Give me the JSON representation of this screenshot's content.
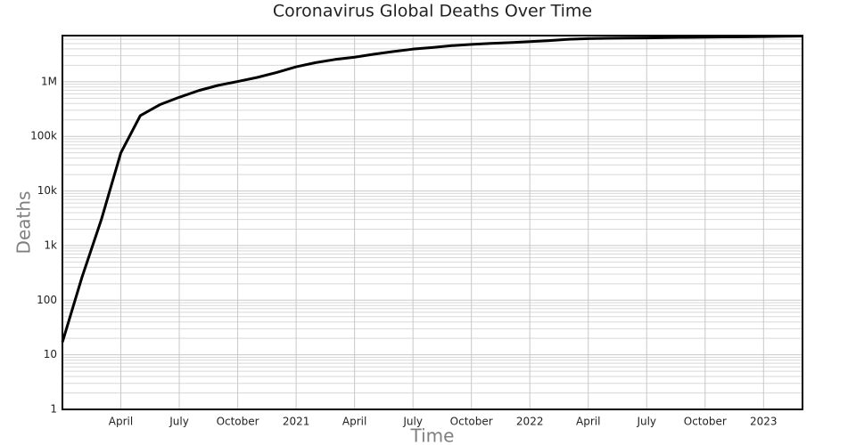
{
  "chart_data": {
    "type": "line",
    "title": "Coronavirus Global Deaths Over Time",
    "x_label": "Time",
    "y_label": "Deaths",
    "x": [
      "2020-01",
      "2020-02",
      "2020-03",
      "2020-04",
      "2020-05",
      "2020-06",
      "2020-07",
      "2020-08",
      "2020-09",
      "2020-10",
      "2020-11",
      "2020-12",
      "2021-01",
      "2021-02",
      "2021-03",
      "2021-04",
      "2021-05",
      "2021-06",
      "2021-07",
      "2021-08",
      "2021-09",
      "2021-10",
      "2021-11",
      "2021-12",
      "2022-01",
      "2022-02",
      "2022-03",
      "2022-04",
      "2022-05",
      "2022-06",
      "2022-07",
      "2022-08",
      "2022-09",
      "2022-10",
      "2022-11",
      "2022-12",
      "2023-01",
      "2023-02",
      "2023-03"
    ],
    "series": [
      {
        "name": "Deaths",
        "color": "#000000",
        "values": [
          17,
          260,
          3000,
          50000,
          240000,
          380000,
          520000,
          690000,
          860000,
          1010000,
          1200000,
          1480000,
          1880000,
          2240000,
          2560000,
          2820000,
          3200000,
          3580000,
          3960000,
          4240000,
          4580000,
          4840000,
          5030000,
          5220000,
          5440000,
          5680000,
          5990000,
          6180000,
          6260000,
          6310000,
          6350000,
          6430000,
          6500000,
          6560000,
          6620000,
          6660000,
          6720000,
          6820000,
          6860000
        ]
      }
    ],
    "xlim": [
      "2020-01",
      "2023-03"
    ],
    "xticks": [
      {
        "value": "2020-04",
        "label": "April"
      },
      {
        "value": "2020-07",
        "label": "July"
      },
      {
        "value": "2020-10",
        "label": "October"
      },
      {
        "value": "2021-01",
        "label": "2021"
      },
      {
        "value": "2021-04",
        "label": "April"
      },
      {
        "value": "2021-07",
        "label": "July"
      },
      {
        "value": "2021-10",
        "label": "October"
      },
      {
        "value": "2022-01",
        "label": "2022"
      },
      {
        "value": "2022-04",
        "label": "April"
      },
      {
        "value": "2022-07",
        "label": "July"
      },
      {
        "value": "2022-10",
        "label": "October"
      },
      {
        "value": "2023-01",
        "label": "2023"
      }
    ],
    "ylim": [
      1,
      7000000
    ],
    "log_y": true,
    "yticks": [
      1,
      10,
      100,
      {
        "value": 1000,
        "label": "1k"
      },
      {
        "value": 10000,
        "label": "10k"
      },
      {
        "value": 100000,
        "label": "100k"
      },
      {
        "value": 1000000,
        "label": "1M"
      }
    ],
    "grid": true,
    "minor_grid": true
  }
}
